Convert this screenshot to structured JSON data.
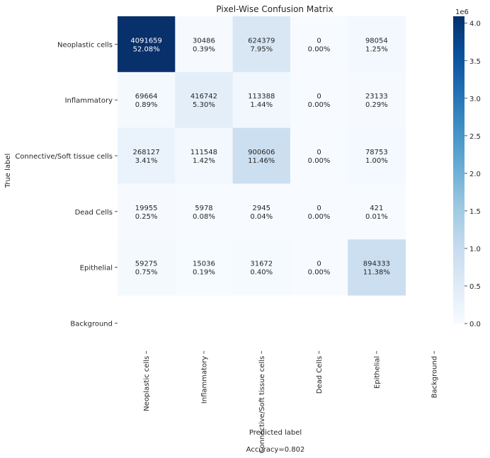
{
  "chart_data": {
    "type": "heatmap",
    "title": "Pixel-Wise Confusion Matrix",
    "xlabel": "Predicted label",
    "ylabel": "True label",
    "footer": "Accuracy=0.802",
    "row_labels": [
      "Neoplastic cells",
      "Inflammatory",
      "Connective/Soft tissue cells",
      "Dead Cells",
      "Epithelial",
      "Background"
    ],
    "col_labels": [
      "Neoplastic cells",
      "Inflammatory",
      "Connective/Soft tissue cells",
      "Dead Cells",
      "Epithelial",
      "Background"
    ],
    "counts": [
      [
        4091659,
        30486,
        624379,
        0,
        98054,
        null
      ],
      [
        69664,
        416742,
        113388,
        0,
        23133,
        null
      ],
      [
        268127,
        111548,
        900606,
        0,
        78753,
        null
      ],
      [
        19955,
        5978,
        2945,
        0,
        421,
        null
      ],
      [
        59275,
        15036,
        31672,
        0,
        894333,
        null
      ],
      [
        null,
        null,
        null,
        null,
        null,
        null
      ]
    ],
    "percents": [
      [
        "52.08%",
        "0.39%",
        "7.95%",
        "0.00%",
        "1.25%",
        null
      ],
      [
        "0.89%",
        "5.30%",
        "1.44%",
        "0.00%",
        "0.29%",
        null
      ],
      [
        "3.41%",
        "1.42%",
        "11.46%",
        "0.00%",
        "1.00%",
        null
      ],
      [
        "0.25%",
        "0.08%",
        "0.04%",
        "0.00%",
        "0.01%",
        null
      ],
      [
        "0.75%",
        "0.19%",
        "0.40%",
        "0.00%",
        "11.38%",
        null
      ],
      [
        null,
        null,
        null,
        null,
        null,
        null
      ]
    ],
    "colorbar": {
      "min": 0,
      "max": 4091659,
      "multiplier_label": "1e6",
      "ticks": [
        "0.0",
        "0.5",
        "1.0",
        "1.5",
        "2.0",
        "2.5",
        "3.0",
        "3.5",
        "4.0"
      ],
      "tick_values": [
        0,
        500000,
        1000000,
        1500000,
        2000000,
        2500000,
        3000000,
        3500000,
        4000000
      ]
    },
    "colormap": [
      "#f7fbff",
      "#deebf7",
      "#c6dbef",
      "#9ecae1",
      "#6baed6",
      "#4292c6",
      "#2171b5",
      "#08519c",
      "#08306b"
    ],
    "dark_text_color": "#262626",
    "light_text_color": "#ffffff"
  }
}
